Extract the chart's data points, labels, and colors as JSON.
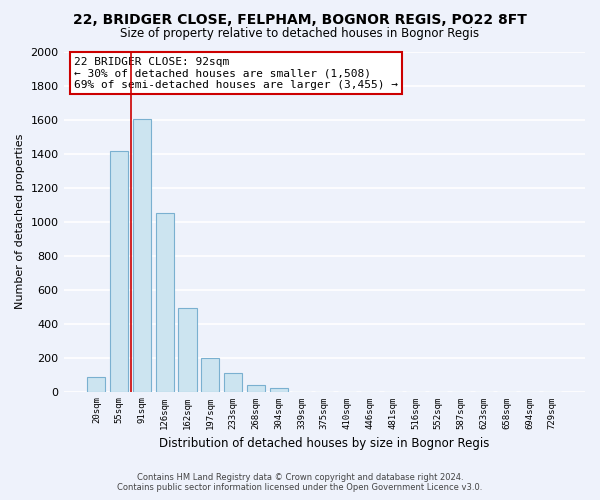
{
  "title": "22, BRIDGER CLOSE, FELPHAM, BOGNOR REGIS, PO22 8FT",
  "subtitle": "Size of property relative to detached houses in Bognor Regis",
  "xlabel": "Distribution of detached houses by size in Bognor Regis",
  "ylabel": "Number of detached properties",
  "categories": [
    "20sqm",
    "55sqm",
    "91sqm",
    "126sqm",
    "162sqm",
    "197sqm",
    "233sqm",
    "268sqm",
    "304sqm",
    "339sqm",
    "375sqm",
    "410sqm",
    "446sqm",
    "481sqm",
    "516sqm",
    "552sqm",
    "587sqm",
    "623sqm",
    "658sqm",
    "694sqm",
    "729sqm"
  ],
  "values": [
    85,
    1415,
    1605,
    1050,
    490,
    200,
    110,
    40,
    20,
    0,
    0,
    0,
    0,
    0,
    0,
    0,
    0,
    0,
    0,
    0,
    0
  ],
  "bar_color": "#cce4f0",
  "bar_edge_color": "#7ab0d0",
  "highlight_line_color": "#cc0000",
  "annotation_text_line1": "22 BRIDGER CLOSE: 92sqm",
  "annotation_text_line2": "← 30% of detached houses are smaller (1,508)",
  "annotation_text_line3": "69% of semi-detached houses are larger (3,455) →",
  "annotation_box_color": "white",
  "annotation_box_edge": "#cc0000",
  "ylim": [
    0,
    2000
  ],
  "yticks": [
    0,
    200,
    400,
    600,
    800,
    1000,
    1200,
    1400,
    1600,
    1800,
    2000
  ],
  "footer_line1": "Contains HM Land Registry data © Crown copyright and database right 2024.",
  "footer_line2": "Contains public sector information licensed under the Open Government Licence v3.0.",
  "bg_color": "#eef2fb",
  "grid_color": "white"
}
